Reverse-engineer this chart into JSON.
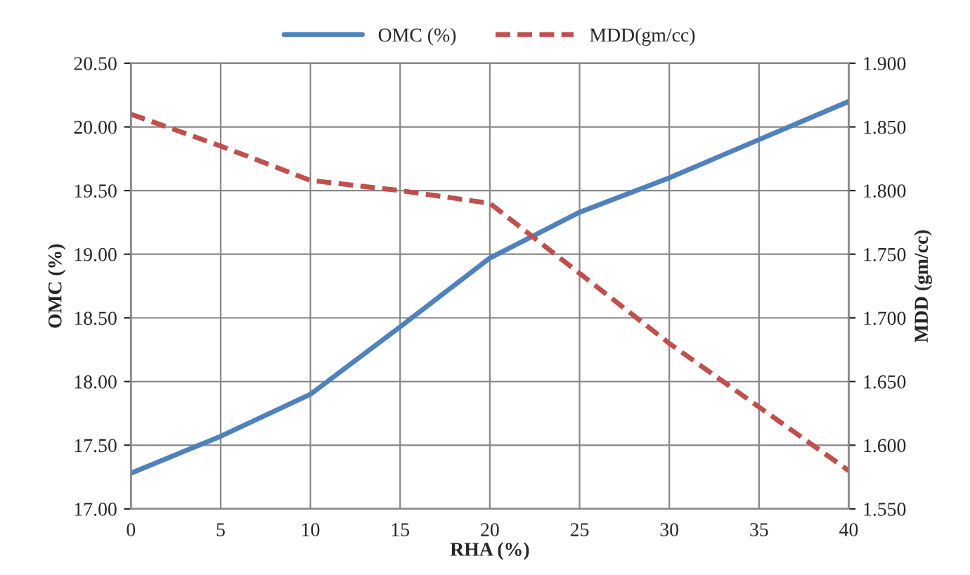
{
  "chart_data": {
    "type": "line",
    "xlabel": "RHA (%)",
    "ylabel": "OMC (%)",
    "y2label": "MDD (gm/cc)",
    "x": [
      0,
      5,
      10,
      15,
      20,
      25,
      30,
      35,
      40
    ],
    "series": [
      {
        "name": "OMC (%)",
        "color": "#4f81bd",
        "line_style": "solid",
        "values": [
          17.28,
          17.57,
          17.9,
          18.43,
          18.97,
          19.33,
          19.6,
          19.9,
          20.2
        ]
      },
      {
        "name": "MDD(gm/cc)",
        "color": "#c0504d",
        "line_style": "dashed",
        "axis": "y2",
        "values": [
          1.86,
          1.835,
          1.808,
          1.8,
          1.79,
          1.735,
          1.68,
          1.63,
          1.58
        ]
      }
    ],
    "xlim": [
      0,
      40
    ],
    "xticks": [
      0,
      5,
      10,
      15,
      20,
      25,
      30,
      35,
      40
    ],
    "ylim": [
      17.0,
      20.5
    ],
    "yticks": [
      {
        "value": 17.0,
        "label": "17.00"
      },
      {
        "value": 17.5,
        "label": "17.50"
      },
      {
        "value": 18.0,
        "label": "18.00"
      },
      {
        "value": 18.5,
        "label": "18.50"
      },
      {
        "value": 19.0,
        "label": "19.00"
      },
      {
        "value": 19.5,
        "label": "19.50"
      },
      {
        "value": 20.0,
        "label": "20.00"
      },
      {
        "value": 20.5,
        "label": "20.50"
      }
    ],
    "y2lim": [
      1.55,
      1.9
    ],
    "y2ticks": [
      {
        "value": 1.55,
        "label": "1.550"
      },
      {
        "value": 1.6,
        "label": "1.600"
      },
      {
        "value": 1.65,
        "label": "1.650"
      },
      {
        "value": 1.7,
        "label": "1.700"
      },
      {
        "value": 1.75,
        "label": "1.750"
      },
      {
        "value": 1.8,
        "label": "1.800"
      },
      {
        "value": 1.85,
        "label": "1.850"
      },
      {
        "value": 1.9,
        "label": "1.900"
      }
    ],
    "grid": true,
    "legend": "top",
    "marker": "none"
  }
}
